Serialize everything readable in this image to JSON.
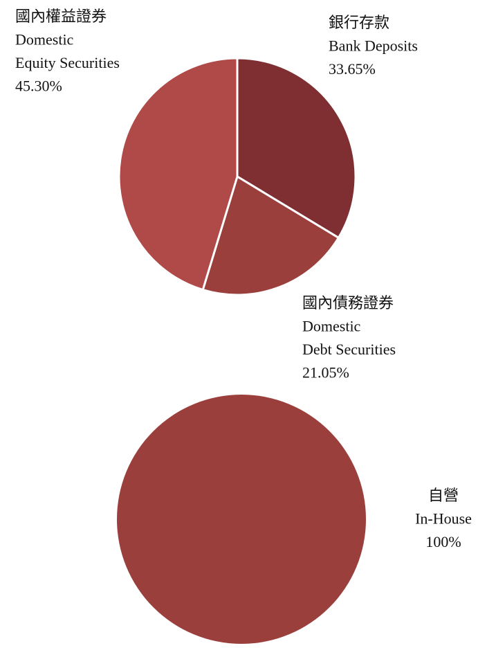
{
  "chart_data": [
    {
      "type": "pie",
      "categories": [
        [
          "銀行存款",
          "Bank Deposits"
        ],
        [
          "國內債務證券",
          "Domestic",
          "Debt Securities"
        ],
        [
          "國內權益證券",
          "Domestic",
          "Equity Securities"
        ]
      ],
      "values": [
        33.65,
        21.05,
        45.3
      ],
      "value_labels": [
        "33.65%",
        "21.05%",
        "45.30%"
      ],
      "colors": [
        "#7f2f31",
        "#9b3f3c",
        "#b04a48"
      ]
    },
    {
      "type": "pie",
      "categories": [
        [
          "自營",
          "In-House"
        ]
      ],
      "values": [
        100
      ],
      "value_labels": [
        "100%"
      ],
      "colors": [
        "#9b3f3c"
      ]
    }
  ]
}
